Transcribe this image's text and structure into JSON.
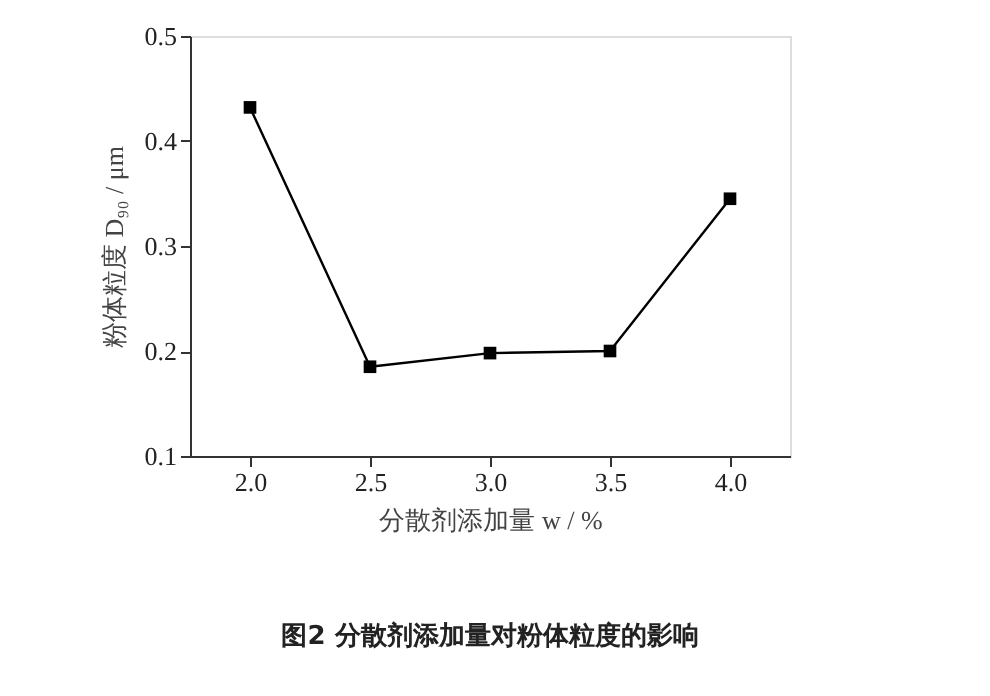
{
  "chart_data": {
    "type": "line",
    "xlabel": "分散剂添加量 w / %",
    "ylabel": "粉体粒度 D₉₀ / μm",
    "x": [
      2.0,
      2.5,
      3.0,
      3.5,
      4.0
    ],
    "series": [
      {
        "color": "#000000",
        "values": [
          0.432,
          0.185,
          0.198,
          0.2,
          0.345
        ]
      }
    ],
    "xlim": [
      1.75,
      4.25
    ],
    "xticks": [
      {
        "value": 2,
        "label": "2.0"
      },
      {
        "value": 2.5,
        "label": "2.5"
      },
      {
        "value": 3,
        "label": "3.0"
      },
      {
        "value": 3.5,
        "label": "3.5"
      },
      {
        "value": 4,
        "label": "4.0"
      }
    ],
    "ylim": [
      0.1,
      0.5
    ],
    "yticks": [
      0.1,
      0.2,
      0.3,
      0.4,
      0.5
    ],
    "marker": "square",
    "line_style": "solid",
    "grid": false,
    "annotations": [
      "图2 分散剂添加量对粉体粒度的影响"
    ]
  }
}
